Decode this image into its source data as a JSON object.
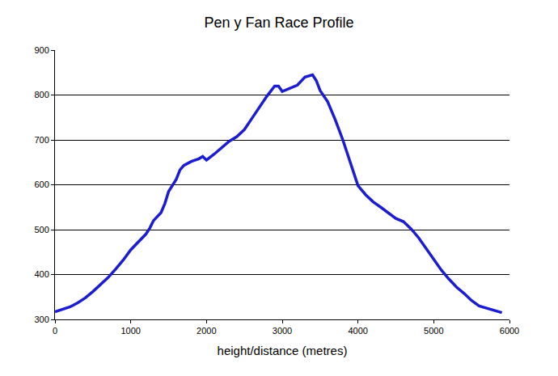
{
  "chart_data": {
    "type": "line",
    "title": "Pen y Fan Race Profile",
    "x_label": "height/distance (metres)",
    "color": "#1c1cd0",
    "grid": true,
    "x": [
      0,
      100,
      200,
      300,
      400,
      500,
      600,
      700,
      800,
      900,
      1000,
      1100,
      1200,
      1250,
      1300,
      1400,
      1450,
      1500,
      1600,
      1650,
      1700,
      1800,
      1850,
      1900,
      1950,
      2000,
      2100,
      2200,
      2300,
      2400,
      2500,
      2600,
      2700,
      2800,
      2900,
      2950,
      3000,
      3100,
      3200,
      3300,
      3400,
      3450,
      3500,
      3600,
      3700,
      3800,
      3900,
      4000,
      4100,
      4200,
      4300,
      4400,
      4500,
      4600,
      4700,
      4800,
      4900,
      5000,
      5100,
      5200,
      5300,
      5400,
      5500,
      5600,
      5700,
      5800,
      5900
    ],
    "values": [
      317,
      322,
      328,
      337,
      348,
      362,
      377,
      393,
      412,
      432,
      455,
      472,
      490,
      503,
      520,
      538,
      558,
      585,
      612,
      633,
      643,
      652,
      655,
      658,
      663,
      655,
      668,
      683,
      697,
      707,
      723,
      748,
      773,
      798,
      820,
      820,
      808,
      815,
      822,
      840,
      845,
      832,
      810,
      785,
      745,
      700,
      650,
      598,
      578,
      562,
      550,
      538,
      525,
      518,
      502,
      482,
      458,
      435,
      410,
      390,
      372,
      358,
      342,
      330,
      325,
      320,
      315
    ],
    "xlim": [
      0,
      6000
    ],
    "xticks": [
      0,
      1000,
      2000,
      3000,
      4000,
      5000,
      6000
    ],
    "ylim": [
      300,
      900
    ],
    "yticks": [
      300,
      400,
      500,
      600,
      700,
      800,
      900
    ]
  }
}
